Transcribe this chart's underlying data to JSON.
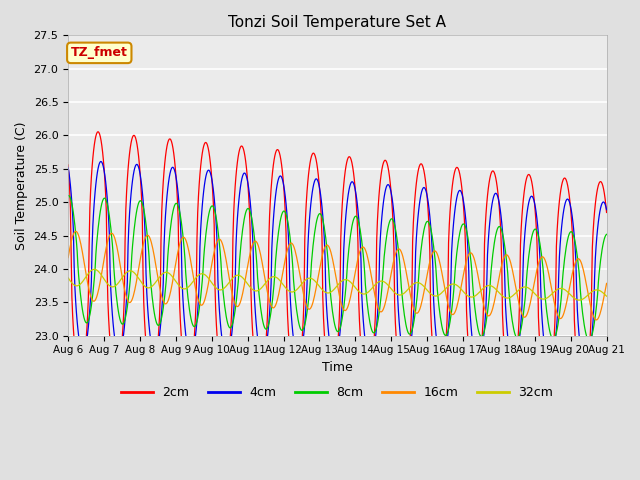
{
  "title": "Tonzi Soil Temperature Set A",
  "xlabel": "Time",
  "ylabel": "Soil Temperature (C)",
  "ylim": [
    23.0,
    27.5
  ],
  "x_tick_labels": [
    "Aug 6",
    "Aug 7",
    "Aug 8",
    "Aug 9",
    "Aug 10",
    "Aug 11",
    "Aug 12",
    "Aug 13",
    "Aug 14",
    "Aug 15",
    "Aug 16",
    "Aug 17",
    "Aug 18",
    "Aug 19",
    "Aug 20",
    "Aug 21"
  ],
  "annotation_text": "TZ_fmet",
  "annotation_bg": "#ffffcc",
  "annotation_border": "#cc8800",
  "colors": {
    "2cm": "#ff0000",
    "4cm": "#0000ee",
    "8cm": "#00cc00",
    "16cm": "#ff8800",
    "32cm": "#cccc00"
  },
  "bg_color": "#e0e0e0",
  "plot_bg": "#ebebeb",
  "grid_color": "#ffffff",
  "num_days": 15,
  "samples_per_day": 48
}
